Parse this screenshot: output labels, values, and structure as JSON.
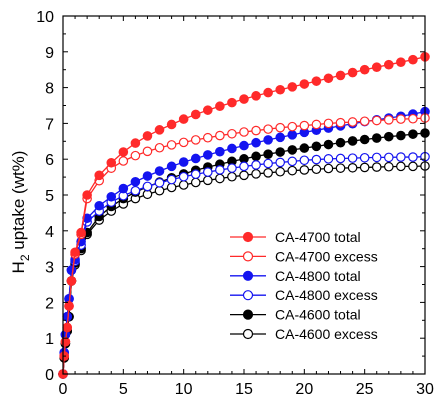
{
  "chart_data": {
    "type": "line",
    "title": "",
    "xlabel": "",
    "ylabel_main": "H",
    "ylabel_sub": "2",
    "ylabel_rest": " uptake (wt%)",
    "xlim": [
      0,
      30
    ],
    "ylim": [
      0,
      10
    ],
    "x_ticks": [
      "0",
      "5",
      "10",
      "15",
      "20",
      "25",
      "30"
    ],
    "y_ticks": [
      "0",
      "1",
      "2",
      "3",
      "4",
      "5",
      "6",
      "7",
      "8",
      "9",
      "10"
    ],
    "grid": false,
    "legend_position": "bottom-right",
    "series": [
      {
        "name": "CA-4700 total",
        "color": "#ff2a2a",
        "marker": "filled",
        "x": [
          0,
          0.1,
          0.2,
          0.35,
          0.5,
          0.7,
          1,
          1.5,
          2,
          3,
          4,
          5,
          6,
          7,
          8,
          9,
          10,
          11,
          12,
          13,
          14,
          15,
          16,
          17,
          18,
          19,
          20,
          21,
          22,
          23,
          24,
          25,
          26,
          27,
          28,
          29,
          30
        ],
        "y": [
          0,
          0.5,
          0.9,
          1.3,
          1.9,
          2.6,
          3.4,
          3.95,
          5.0,
          5.55,
          5.9,
          6.2,
          6.45,
          6.65,
          6.82,
          6.97,
          7.12,
          7.25,
          7.37,
          7.48,
          7.58,
          7.68,
          7.77,
          7.86,
          7.94,
          8.02,
          8.1,
          8.18,
          8.26,
          8.34,
          8.42,
          8.5,
          8.57,
          8.64,
          8.71,
          8.78,
          8.86
        ]
      },
      {
        "name": "CA-4700 excess",
        "color": "#ff2a2a",
        "marker": "open",
        "x": [
          0,
          0.1,
          0.2,
          0.35,
          0.5,
          0.7,
          1,
          1.5,
          2,
          3,
          4,
          5,
          6,
          7,
          8,
          9,
          10,
          11,
          12,
          13,
          14,
          15,
          16,
          17,
          18,
          19,
          20,
          21,
          22,
          23,
          24,
          25,
          26,
          27,
          28,
          29,
          30
        ],
        "y": [
          0,
          0.5,
          0.9,
          1.3,
          1.9,
          2.6,
          3.35,
          3.9,
          4.9,
          5.4,
          5.75,
          5.95,
          6.1,
          6.22,
          6.32,
          6.4,
          6.47,
          6.54,
          6.6,
          6.66,
          6.71,
          6.76,
          6.8,
          6.84,
          6.88,
          6.91,
          6.94,
          6.97,
          7.0,
          7.02,
          7.04,
          7.06,
          7.08,
          7.1,
          7.12,
          7.13,
          7.15
        ]
      },
      {
        "name": "CA-4800 total",
        "color": "#1414f0",
        "marker": "filled",
        "x": [
          0,
          0.1,
          0.2,
          0.35,
          0.5,
          0.7,
          1,
          1.5,
          2,
          3,
          4,
          5,
          6,
          7,
          8,
          9,
          10,
          11,
          12,
          13,
          14,
          15,
          16,
          17,
          18,
          19,
          20,
          21,
          22,
          23,
          24,
          25,
          26,
          27,
          28,
          29,
          30
        ],
        "y": [
          0,
          0.6,
          1.1,
          1.6,
          2.1,
          2.9,
          3.2,
          3.7,
          4.35,
          4.7,
          4.95,
          5.18,
          5.37,
          5.53,
          5.67,
          5.8,
          5.92,
          6.02,
          6.12,
          6.21,
          6.3,
          6.38,
          6.46,
          6.54,
          6.61,
          6.68,
          6.75,
          6.81,
          6.87,
          6.93,
          6.99,
          7.05,
          7.1,
          7.15,
          7.2,
          7.26,
          7.33
        ]
      },
      {
        "name": "CA-4800 excess",
        "color": "#1414f0",
        "marker": "open",
        "x": [
          0,
          0.1,
          0.2,
          0.35,
          0.5,
          0.7,
          1,
          1.5,
          2,
          3,
          4,
          5,
          6,
          7,
          8,
          9,
          10,
          11,
          12,
          13,
          14,
          15,
          16,
          17,
          18,
          19,
          20,
          21,
          22,
          23,
          24,
          25,
          26,
          27,
          28,
          29,
          30
        ],
        "y": [
          0,
          0.6,
          1.1,
          1.6,
          2.1,
          2.9,
          3.15,
          3.6,
          4.25,
          4.55,
          4.8,
          4.98,
          5.12,
          5.24,
          5.34,
          5.43,
          5.51,
          5.58,
          5.64,
          5.7,
          5.75,
          5.8,
          5.84,
          5.88,
          5.91,
          5.94,
          5.97,
          5.99,
          6.01,
          6.02,
          6.03,
          6.04,
          6.05,
          6.05,
          6.06,
          6.06,
          6.07
        ]
      },
      {
        "name": "CA-4600 total",
        "color": "#000000",
        "marker": "filled",
        "x": [
          0,
          0.1,
          0.2,
          0.35,
          0.5,
          0.7,
          1,
          1.5,
          2,
          3,
          4,
          5,
          6,
          7,
          8,
          9,
          10,
          11,
          12,
          13,
          14,
          15,
          16,
          17,
          18,
          19,
          20,
          21,
          22,
          23,
          24,
          25,
          26,
          27,
          28,
          29,
          30
        ],
        "y": [
          0,
          0.45,
          0.85,
          1.2,
          1.6,
          2.6,
          3.1,
          3.5,
          3.95,
          4.4,
          4.68,
          4.9,
          5.08,
          5.23,
          5.36,
          5.48,
          5.59,
          5.69,
          5.78,
          5.86,
          5.94,
          6.01,
          6.08,
          6.14,
          6.2,
          6.26,
          6.31,
          6.36,
          6.41,
          6.46,
          6.51,
          6.55,
          6.59,
          6.63,
          6.66,
          6.7,
          6.73
        ]
      },
      {
        "name": "CA-4600 excess",
        "color": "#000000",
        "marker": "open",
        "x": [
          0,
          0.1,
          0.2,
          0.35,
          0.5,
          0.7,
          1,
          1.5,
          2,
          3,
          4,
          5,
          6,
          7,
          8,
          9,
          10,
          11,
          12,
          13,
          14,
          15,
          16,
          17,
          18,
          19,
          20,
          21,
          22,
          23,
          24,
          25,
          26,
          27,
          28,
          29,
          30
        ],
        "y": [
          0,
          0.45,
          0.85,
          1.2,
          1.6,
          2.6,
          3.05,
          3.45,
          3.9,
          4.3,
          4.55,
          4.75,
          4.9,
          5.02,
          5.12,
          5.21,
          5.28,
          5.35,
          5.41,
          5.46,
          5.51,
          5.55,
          5.59,
          5.62,
          5.65,
          5.68,
          5.7,
          5.72,
          5.74,
          5.75,
          5.76,
          5.77,
          5.78,
          5.79,
          5.8,
          5.8,
          5.81
        ]
      }
    ]
  }
}
